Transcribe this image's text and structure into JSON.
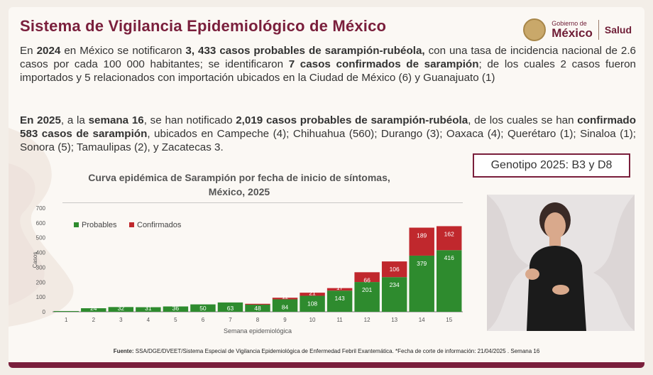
{
  "header": {
    "title": "Sistema de Vigilancia Epidemiológico de México"
  },
  "logo": {
    "line1": "Gobierno de",
    "line2": "México",
    "dept": "Salud"
  },
  "paragraph1": {
    "t1": "En ",
    "b1": "2024",
    "t2": " en México se notificaron ",
    "b2": "3, 433 casos probables de sarampión-rubéola,",
    "t3": " con una tasa de incidencia nacional de 2.6 casos por cada 100 000 habitantes; se identificaron ",
    "b3": "7 casos confirmados de sarampión",
    "t4": "; de los cuales 2 casos fueron importados y 5 relacionados con importación ubicados en la Ciudad de México (6) y Guanajuato (1)"
  },
  "paragraph2": {
    "b1": "En 2025",
    "t1": ", a la ",
    "b2": "semana 16",
    "t2": ", se han notificado  ",
    "b3": "2,019 casos probables de sarampión-rubéola",
    "t3": ", de los cuales se han ",
    "b4": "confirmado 583 casos de sarampión",
    "t4": ", ubicados en Campeche (4); Chihuahua (560); Durango (3); Oaxaca (4); Querétaro (1); Sinaloa (1); Sonora (5); Tamaulipas (2), y Zacatecas 3."
  },
  "genotipo": "Genotipo 2025: B3 y D8",
  "chart_data": {
    "type": "bar",
    "stacked": true,
    "title_line1": "Curva epidémica de Sarampión por fecha de inicio de síntomas,",
    "title_line2": "México, 2025",
    "xlabel": "Semana epidemiológica",
    "ylabel": "Casos",
    "ylim": [
      0,
      700
    ],
    "yticks": [
      0,
      100,
      200,
      300,
      400,
      500,
      600,
      700
    ],
    "categories": [
      "1",
      "2",
      "3",
      "4",
      "5",
      "6",
      "7",
      "8",
      "9",
      "10",
      "11",
      "12",
      "13",
      "14",
      "15"
    ],
    "legend_position": "top-left",
    "series": [
      {
        "name": "Probables",
        "color": "#2e8b2e",
        "values": [
          5,
          24,
          32,
          31,
          36,
          50,
          63,
          48,
          84,
          108,
          143,
          201,
          234,
          379,
          416
        ],
        "labels": [
          "",
          "24",
          "32",
          "31",
          "36",
          "50",
          "63",
          "48",
          "84",
          "108",
          "143",
          "201",
          "234",
          "379",
          "416"
        ]
      },
      {
        "name": "Confirmados",
        "color": "#c0282d",
        "values": [
          0,
          0,
          0,
          0,
          0,
          0,
          0,
          6,
          11,
          21,
          17,
          66,
          106,
          189,
          162
        ],
        "labels": [
          "",
          "",
          "",
          "",
          "",
          "",
          "",
          "",
          "11",
          "21",
          "17",
          "66",
          "106",
          "189",
          "162"
        ]
      }
    ]
  },
  "footer": {
    "source_label": "Fuente:",
    "source_text": " SSA/DGE/DVEET/Sistema Especial de Vigilancia Epidemiológica de Enfermedad Febril Exantemática.  *Fecha de corte de información: 21/04/2025 . Semana 16"
  }
}
